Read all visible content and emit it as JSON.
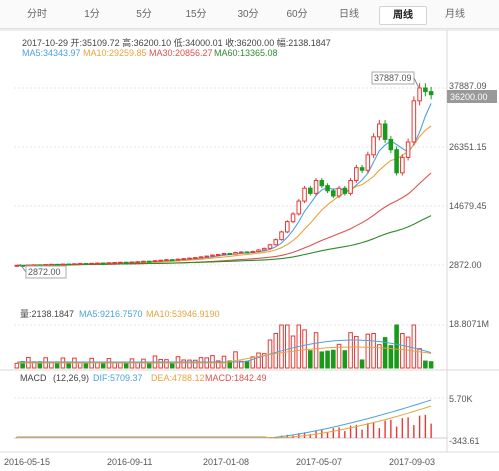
{
  "tabs": [
    {
      "label": "分时",
      "active": false
    },
    {
      "label": "1分",
      "active": false
    },
    {
      "label": "5分",
      "active": false
    },
    {
      "label": "15分",
      "active": false
    },
    {
      "label": "30分",
      "active": false
    },
    {
      "label": "60分",
      "active": false
    },
    {
      "label": "日线",
      "active": false
    },
    {
      "label": "周线",
      "active": true
    },
    {
      "label": "月线",
      "active": false
    }
  ],
  "info": {
    "line1": "2017-10-29  开:35109.72 高:36200.10 低:34000.01 收:36200.00 幅:2138.1847",
    "ma5": "MA5:34343.97",
    "ma10": "MA10:29259.85",
    "ma30": "MA30:20856.27",
    "ma60": "MA60:13365.08"
  },
  "price_axis": [
    "37887.09",
    "26351.15",
    "14679.45",
    "2872.00"
  ],
  "current_price": "36200.00",
  "high_callout": "37887.09",
  "low_callout": "2872.00",
  "volume": {
    "info": "量:2138.1847",
    "ma5": "MA5:9216.7570",
    "ma10": "MA10:53946.9190",
    "axis_max": "18.8071M"
  },
  "macd": {
    "title": "MACD",
    "params": "(12,26,9)",
    "dif": "DIF:5709.37",
    "dea": "DEA:4788.12",
    "macd": "MACD:1842.49",
    "axis_top": "5.70K",
    "axis_bottom": "-343.61"
  },
  "dates": [
    "2016-05-15",
    "2016-09-11",
    "2017-01-08",
    "2017-05-07",
    "2017-09-03"
  ],
  "colors": {
    "up": "#e53935",
    "down": "#1a9a1a",
    "ma5": "#4aa3df",
    "ma10": "#e8a33c",
    "ma30": "#d9534f",
    "ma60": "#2e8b2e",
    "grid": "#e6e6e6"
  },
  "chart_data": {
    "type": "candlestick",
    "interval": "weekly",
    "x_dates": [
      "2016-05-15",
      "2016-09-11",
      "2017-01-08",
      "2017-05-07",
      "2017-09-03"
    ],
    "price_range": [
      2872.0,
      37887.09
    ],
    "candles_close": [
      3000,
      2950,
      3050,
      3100,
      3050,
      3150,
      3200,
      3150,
      3250,
      3200,
      3300,
      3350,
      3300,
      3400,
      3450,
      3400,
      3500,
      3550,
      3600,
      3550,
      3650,
      3700,
      3800,
      3750,
      3900,
      4000,
      4100,
      4050,
      4200,
      4300,
      4400,
      4500,
      4650,
      4800,
      5000,
      5100,
      5300,
      5200,
      5500,
      5600,
      5500,
      5700,
      6000,
      6300,
      7000,
      8000,
      9500,
      11500,
      13000,
      15500,
      18000,
      17000,
      19500,
      18500,
      17500,
      16500,
      18000,
      17000,
      19500,
      22000,
      21500,
      24500,
      28000,
      30500,
      27500,
      25500,
      21000,
      24000,
      27000,
      35000,
      37500,
      36800,
      36200
    ],
    "ma60_end": 13365.08,
    "ma30_end": 20856.27,
    "ma10_end": 29259.85,
    "ma5_end": 34343.97,
    "volume_max": "18.8071M",
    "macd_range": [
      -343.61,
      5700
    ]
  }
}
